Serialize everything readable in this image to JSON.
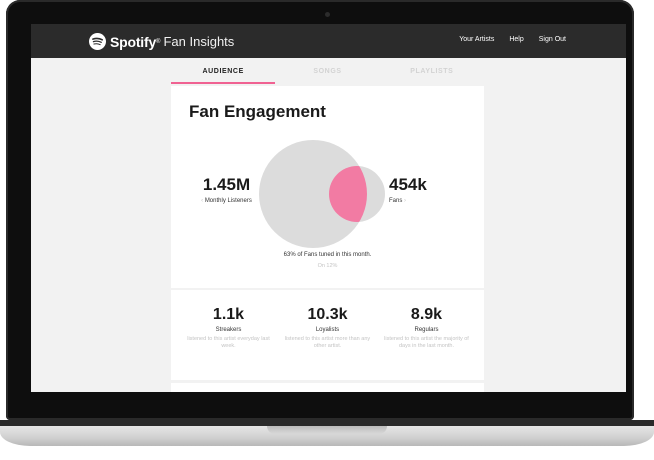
{
  "app": {
    "brand": "Spotify",
    "trademark": "®",
    "product": "Fan Insights"
  },
  "nav": {
    "items": [
      "Your Artists",
      "Help",
      "Sign Out"
    ]
  },
  "tabs": [
    {
      "label": "AUDIENCE",
      "active": true
    },
    {
      "label": "SONGS",
      "active": false
    },
    {
      "label": "PLAYLISTS",
      "active": false
    }
  ],
  "engagement": {
    "title": "Fan Engagement",
    "listeners_value": "1.45M",
    "listeners_label": "Monthly Listeners",
    "fans_value": "454k",
    "fans_label": "Fans",
    "caption": "63% of Fans tuned in this month.",
    "caption_sub": "On 12%"
  },
  "stats": [
    {
      "value": "1.1k",
      "name": "Streakers",
      "desc": "listened to this artist everyday last week."
    },
    {
      "value": "10.3k",
      "name": "Loyalists",
      "desc": "listened to this artist more than any other artist."
    },
    {
      "value": "8.9k",
      "name": "Regulars",
      "desc": "listened to this artist the majority of days in the last month."
    }
  ],
  "colors": {
    "accent": "#f06292",
    "header_bg": "#2b2b2b",
    "venn_gray": "#dcdcdc",
    "venn_pink": "#f27ba3",
    "spotify_green": "#ffffff"
  }
}
